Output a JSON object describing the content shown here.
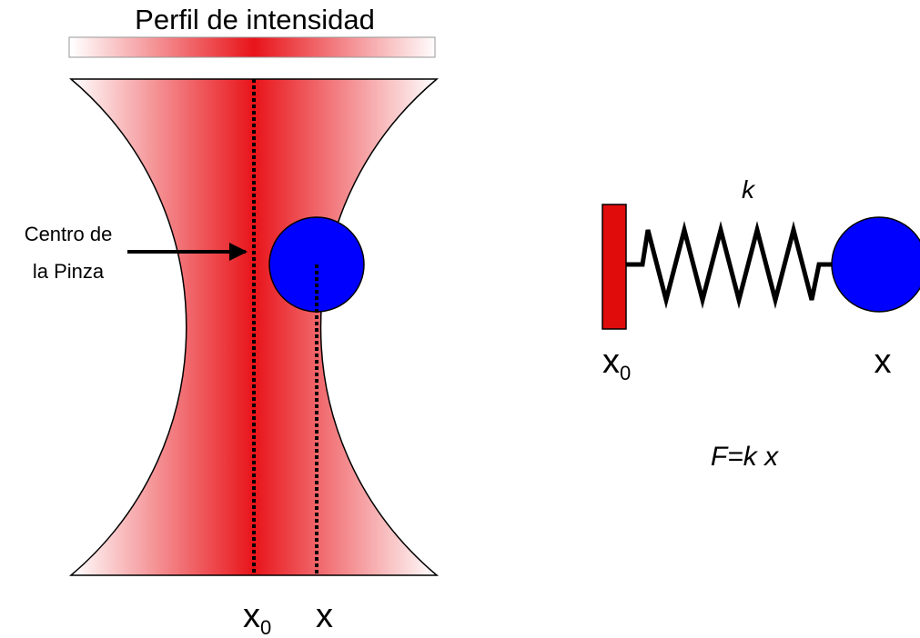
{
  "title": "Perfil de intensidad",
  "pointer_label": {
    "line1": "Centro de",
    "line2": "la Pinza"
  },
  "beam_labels": {
    "center": {
      "base": "x",
      "sub": "0"
    },
    "bead": "x"
  },
  "spring_model": {
    "constant": "k",
    "anchor": {
      "base": "x",
      "sub": "0"
    },
    "bead": "x",
    "law": "F=k x"
  }
}
